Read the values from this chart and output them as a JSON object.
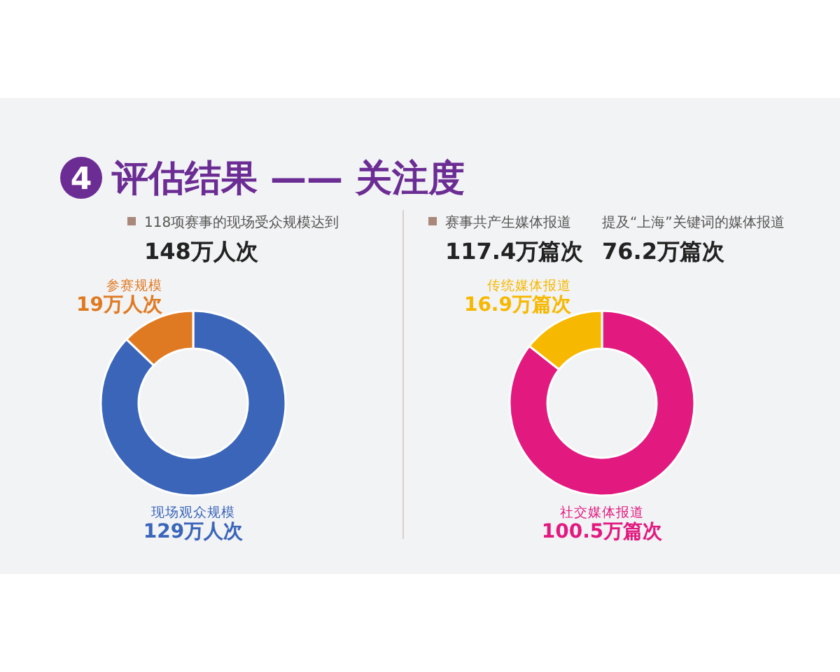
{
  "chart_data": [
    {
      "type": "donut",
      "title": "评估结果 —— 关注度",
      "subtitle": "4",
      "annotations": [
        "118项赛事的现场受众规模达到",
        "148万人次"
      ],
      "categories": [
        "现场观众规模",
        "参赛规模"
      ],
      "values": [
        129,
        19
      ],
      "value_labels": [
        "129万人次",
        "19万人次"
      ],
      "colors": [
        "#3a65b9",
        "#e07a22"
      ]
    },
    {
      "type": "donut",
      "annotations": [
        "赛事共产生媒体报道",
        "117.4万篇次",
        "提及“上海”关键词的媒体报道",
        "76.2万篇次"
      ],
      "categories": [
        "社交媒体报道",
        "传统媒体报道"
      ],
      "values": [
        100.5,
        16.9
      ],
      "value_labels": [
        "100.5万篇次",
        "16.9万篇次"
      ],
      "colors": [
        "#e2197f",
        "#f6b800"
      ]
    }
  ]
}
